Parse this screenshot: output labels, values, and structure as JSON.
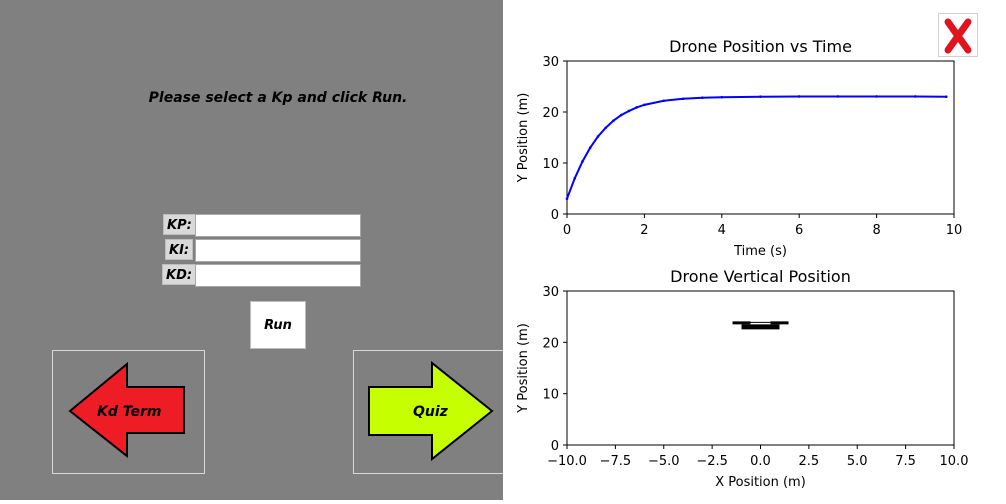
{
  "left": {
    "instruction": "Please select a Kp and click Run.",
    "fields": [
      {
        "label": "KP:",
        "value": ""
      },
      {
        "label": "KI:",
        "value": ""
      },
      {
        "label": "KD:",
        "value": ""
      }
    ],
    "run_label": "Run",
    "back_label": "Kd Term",
    "next_label": "Quiz",
    "colors": {
      "panel": "#808080",
      "back_arrow": "#ee1c24",
      "next_arrow": "#c6ff00"
    }
  },
  "close_icon": "red-x-icon",
  "chart_data": [
    {
      "type": "line",
      "title": "Drone Position vs Time",
      "xlabel": "Time (s)",
      "ylabel": "Y Position (m)",
      "xlim": [
        0,
        10
      ],
      "ylim": [
        0,
        30
      ],
      "xticks": [
        "0",
        "2",
        "4",
        "6",
        "8",
        "10"
      ],
      "yticks": [
        "0",
        "10",
        "20",
        "30"
      ],
      "series": [
        {
          "color": "#0000ff",
          "x": [
            0,
            0.2,
            0.4,
            0.6,
            0.8,
            1.0,
            1.2,
            1.4,
            1.6,
            1.8,
            2.0,
            2.5,
            3.0,
            3.5,
            4.0,
            5.0,
            6.0,
            7.0,
            8.0,
            9.0,
            9.8
          ],
          "y": [
            3.0,
            7.0,
            10.3,
            13.0,
            15.2,
            16.9,
            18.3,
            19.4,
            20.2,
            20.9,
            21.4,
            22.2,
            22.6,
            22.8,
            22.9,
            23.0,
            23.05,
            23.05,
            23.05,
            23.05,
            23.0
          ]
        }
      ]
    },
    {
      "type": "scatter",
      "title": "Drone Vertical Position",
      "xlabel": "X Position (m)",
      "ylabel": "Y Position (m)",
      "xlim": [
        -10,
        10
      ],
      "ylim": [
        0,
        30
      ],
      "xticks": [
        "−10.0",
        "−7.5",
        "−5.0",
        "−2.5",
        "0.0",
        "2.5",
        "5.0",
        "7.5",
        "10.0"
      ],
      "yticks": [
        "0",
        "10",
        "20",
        "30"
      ],
      "drone": {
        "x": 0,
        "y": 23.5,
        "icon": "drone-icon"
      }
    }
  ]
}
